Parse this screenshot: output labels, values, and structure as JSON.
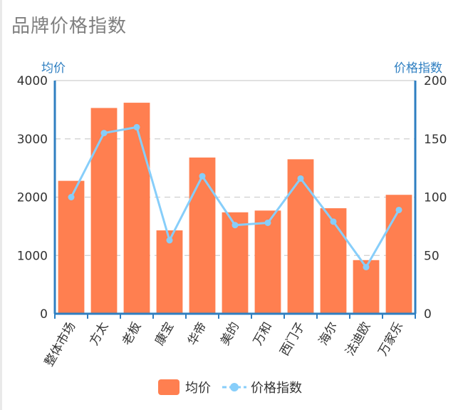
{
  "title": "品牌价格指数",
  "chart_data": {
    "type": "bar",
    "categories": [
      "整体市场",
      "方太",
      "老板",
      "康宝",
      "华帝",
      "美的",
      "万和",
      "西门子",
      "海尔",
      "法迪欧",
      "万家乐"
    ],
    "series": [
      {
        "name": "均价",
        "type": "bar",
        "axis": "left",
        "color": "#ff7f50",
        "values": [
          2280,
          3530,
          3620,
          1430,
          2680,
          1740,
          1770,
          2650,
          1810,
          920,
          2040
        ]
      },
      {
        "name": "价格指数",
        "type": "line",
        "axis": "right",
        "color": "#87cefa",
        "values": [
          100,
          155,
          160,
          63,
          118,
          76,
          78,
          116,
          79,
          40,
          89
        ]
      }
    ],
    "y_left": {
      "label": "均价",
      "min": 0,
      "max": 4000,
      "ticks": [
        0,
        1000,
        2000,
        3000,
        4000
      ]
    },
    "y_right": {
      "label": "价格指数",
      "min": 0,
      "max": 200,
      "ticks": [
        0,
        50,
        100,
        150,
        200
      ]
    },
    "grid": true,
    "legend": "bottom-center",
    "colors": {
      "axis": "#2f7fc1",
      "grid": "#c8c8c8"
    }
  }
}
